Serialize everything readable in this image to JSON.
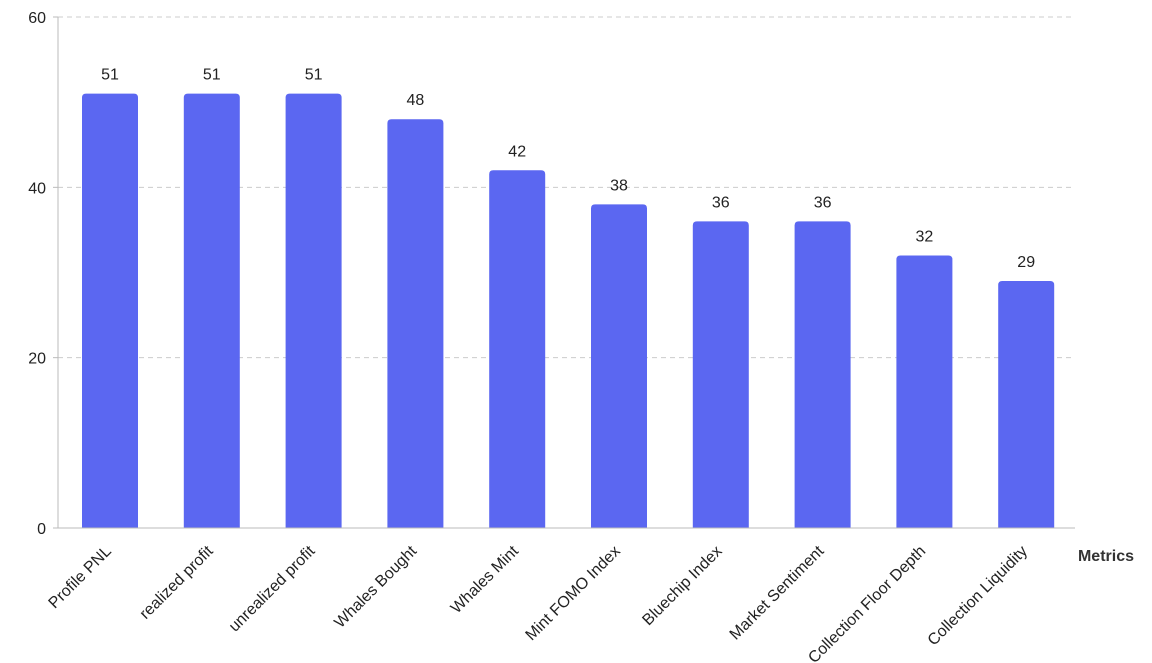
{
  "chart_data": {
    "type": "bar",
    "categories": [
      "Profile PNL",
      "realized profit",
      "unrealized profit",
      "Whales Bought",
      "Whales Mint",
      "Mint FOMO Index",
      "Bluechip Index",
      "Market Sentiment",
      "Collection Floor Depth",
      "Collection Liquidity"
    ],
    "values": [
      51,
      51,
      51,
      48,
      42,
      38,
      36,
      36,
      32,
      29
    ],
    "title": "",
    "xlabel": "Metrics",
    "ylabel": "",
    "ylim": [
      0,
      60
    ],
    "yticks": [
      "0",
      "20",
      "40",
      "60"
    ],
    "grid": true,
    "legend": "none",
    "bar_color": "#5B67F1",
    "grid_color": "#cccccc",
    "axis_color": "#bbbbbb"
  }
}
